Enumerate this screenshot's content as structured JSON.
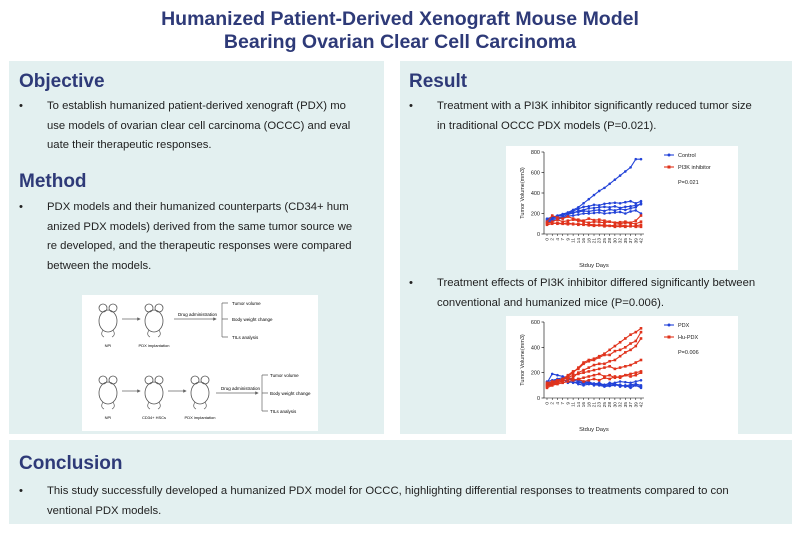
{
  "title": {
    "line1": "Humanized Patient-Derived Xenograft Mouse Model",
    "line2": "Bearing Ovarian Clear Cell Carcinoma"
  },
  "objective": {
    "heading": "Objective",
    "lines": [
      "To establish humanized patient-derived xenograft (PDX) mo",
      "use models of ovarian clear cell carcinoma (OCCC) and eval",
      "uate their therapeutic responses."
    ]
  },
  "method": {
    "heading": "Method",
    "lines": [
      "PDX models and their humanized counterparts (CD34+ hum",
      "anized PDX models) derived from the same tumor source we",
      "re developed, and the therapeutic responses were compared",
      "between the models."
    ],
    "diagram": {
      "row1": {
        "mouse1": "NPI",
        "mouse2": "PDX implantation",
        "arrow_label": "Drug  administration",
        "outcomes": [
          "Tumor volume",
          "Body weight change",
          "TILs  analysis"
        ]
      },
      "row2": {
        "mouse1": "NPI",
        "mouse2": "CD34+ HSCs",
        "mouse3": "PDX implantation",
        "arrow_label": "Drug  administration",
        "outcomes": [
          "Tumor volume",
          "Body weight change",
          "TILs  analysis"
        ]
      }
    }
  },
  "result": {
    "heading": "Result",
    "bullet1": [
      "Treatment with a PI3K inhibitor significantly reduced tumor size",
      "in traditional OCCC PDX models (P=0.021)."
    ],
    "bullet2": [
      "Treatment effects of PI3K inhibitor differed significantly between",
      "conventional and humanized mice (P=0.006)."
    ]
  },
  "conclusion": {
    "heading": "Conclusion",
    "lines": [
      "This study successfully developed a humanized PDX model for OCCC, highlighting differential responses to treatments compared to con",
      "ventional PDX models."
    ]
  },
  "bullet_symbol": "•",
  "colors": {
    "title": "#2e3a78",
    "panel": "#e3f0f0",
    "blue": "#2343d8",
    "red": "#e0331c"
  },
  "chart_data": [
    {
      "type": "line",
      "ylabel": "Tumor Volume(mm3)",
      "xlabel": "Stduy Days",
      "ylim": [
        0,
        800
      ],
      "yticks": [
        0,
        200,
        400,
        600,
        800
      ],
      "x": [
        "0",
        "2",
        "4",
        "7",
        "9",
        "11",
        "14",
        "16",
        "18",
        "21",
        "23",
        "25",
        "28",
        "30",
        "32",
        "35",
        "37",
        "39",
        "42"
      ],
      "legend": [
        "Control",
        "PI3K inhibitor"
      ],
      "annotation": "P=0.021",
      "series": [
        {
          "name": "Control",
          "group": 0,
          "values": [
            140,
            160,
            180,
            195,
            210,
            235,
            260,
            300,
            340,
            380,
            420,
            450,
            490,
            530,
            570,
            610,
            650,
            730,
            730
          ]
        },
        {
          "name": "Control",
          "group": 0,
          "values": [
            130,
            150,
            170,
            185,
            200,
            225,
            245,
            265,
            270,
            285,
            280,
            295,
            300,
            305,
            300,
            310,
            320,
            300,
            320
          ]
        },
        {
          "name": "Control",
          "group": 0,
          "values": [
            120,
            140,
            155,
            170,
            190,
            205,
            225,
            235,
            250,
            255,
            260,
            265,
            260,
            270,
            255,
            265,
            270,
            280,
            290
          ]
        },
        {
          "name": "Control",
          "group": 0,
          "values": [
            150,
            165,
            175,
            190,
            200,
            210,
            215,
            225,
            220,
            230,
            235,
            225,
            240,
            230,
            245,
            235,
            250,
            260,
            300
          ]
        },
        {
          "name": "Control",
          "group": 0,
          "values": [
            110,
            130,
            140,
            160,
            175,
            180,
            190,
            200,
            200,
            205,
            210,
            200,
            205,
            210,
            215,
            200,
            220,
            230,
            200
          ]
        },
        {
          "name": "PI3K inhibitor",
          "group": 1,
          "values": [
            120,
            180,
            160,
            150,
            170,
            150,
            140,
            130,
            150,
            135,
            140,
            130,
            120,
            110,
            115,
            120,
            110,
            130,
            180
          ]
        },
        {
          "name": "PI3K inhibitor",
          "group": 1,
          "values": [
            100,
            120,
            140,
            120,
            130,
            140,
            130,
            120,
            110,
            120,
            115,
            110,
            120,
            110,
            100,
            110,
            105,
            100,
            120
          ]
        },
        {
          "name": "PI3K inhibitor",
          "group": 1,
          "values": [
            110,
            110,
            100,
            100,
            110,
            95,
            100,
            90,
            95,
            90,
            85,
            90,
            80,
            85,
            90,
            80,
            75,
            80,
            90
          ]
        },
        {
          "name": "PI3K inhibitor",
          "group": 1,
          "values": [
            90,
            100,
            110,
            100,
            95,
            100,
            90,
            95,
            85,
            80,
            85,
            75,
            80,
            70,
            75,
            70,
            80,
            70,
            70
          ]
        }
      ]
    },
    {
      "type": "line",
      "ylabel": "Tumor Volume(mm3)",
      "xlabel": "Stduy Days",
      "ylim": [
        0,
        600
      ],
      "yticks": [
        0,
        200,
        400,
        600
      ],
      "x": [
        "0",
        "2",
        "4",
        "7",
        "9",
        "11",
        "14",
        "16",
        "18",
        "21",
        "23",
        "25",
        "28",
        "30",
        "32",
        "35",
        "37",
        "39",
        "42"
      ],
      "legend": [
        "PDX",
        "Hu-PDX"
      ],
      "annotation": "P=0.006",
      "series": [
        {
          "name": "PDX",
          "group": 0,
          "values": [
            120,
            190,
            180,
            170,
            160,
            150,
            140,
            130,
            120,
            115,
            110,
            105,
            110,
            120,
            130,
            125,
            120,
            130,
            140
          ]
        },
        {
          "name": "PDX",
          "group": 0,
          "values": [
            110,
            130,
            150,
            140,
            135,
            120,
            125,
            110,
            120,
            100,
            110,
            95,
            100,
            110,
            100,
            95,
            105,
            110,
            100
          ]
        },
        {
          "name": "PDX",
          "group": 0,
          "values": [
            100,
            120,
            130,
            150,
            120,
            130,
            110,
            100,
            110,
            105,
            100,
            90,
            95,
            100,
            105,
            90,
            95,
            100,
            90
          ]
        },
        {
          "name": "PDX",
          "group": 0,
          "values": [
            130,
            140,
            150,
            160,
            150,
            140,
            130,
            120,
            130,
            110,
            120,
            100,
            120,
            110,
            90,
            100,
            80,
            100,
            80
          ]
        },
        {
          "name": "Hu-PDX",
          "group": 1,
          "values": [
            80,
            100,
            120,
            140,
            170,
            200,
            240,
            280,
            300,
            310,
            330,
            350,
            380,
            410,
            440,
            470,
            500,
            520,
            550
          ]
        },
        {
          "name": "Hu-PDX",
          "group": 1,
          "values": [
            100,
            110,
            130,
            150,
            180,
            210,
            230,
            270,
            290,
            300,
            320,
            340,
            340,
            370,
            380,
            400,
            430,
            450,
            520
          ]
        },
        {
          "name": "Hu-PDX",
          "group": 1,
          "values": [
            90,
            110,
            120,
            130,
            150,
            160,
            200,
            220,
            240,
            260,
            270,
            270,
            290,
            300,
            330,
            360,
            380,
            410,
            470
          ]
        },
        {
          "name": "Hu-PDX",
          "group": 1,
          "values": [
            110,
            120,
            140,
            150,
            160,
            180,
            190,
            200,
            210,
            220,
            230,
            240,
            250,
            230,
            240,
            250,
            260,
            280,
            300
          ]
        },
        {
          "name": "Hu-PDX",
          "group": 1,
          "values": [
            100,
            100,
            110,
            120,
            130,
            140,
            150,
            160,
            170,
            180,
            190,
            170,
            180,
            160,
            170,
            180,
            190,
            200,
            210
          ]
        },
        {
          "name": "Hu-PDX",
          "group": 1,
          "values": [
            120,
            130,
            140,
            150,
            160,
            140,
            150,
            130,
            140,
            150,
            140,
            160,
            150,
            170,
            160,
            180,
            170,
            180,
            200
          ]
        }
      ]
    }
  ]
}
